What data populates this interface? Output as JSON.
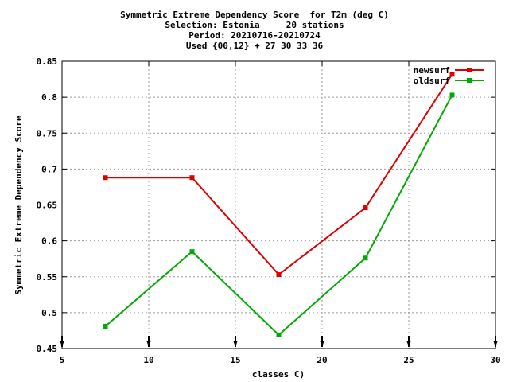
{
  "chart_data": {
    "type": "line",
    "title_lines": [
      "Symmetric Extreme Dependency Score  for T2m (deg C)",
      "Selection: Estonia     20 stations",
      "Period: 20210716-20210724",
      "Used {00,12} + 27 30 33 36"
    ],
    "xlabel": "classes C)",
    "ylabel": "Symmetric Extreme Dependency Score",
    "xlim": [
      5,
      30
    ],
    "ylim": [
      0.45,
      0.85
    ],
    "xticks": [
      5,
      10,
      15,
      20,
      25,
      30
    ],
    "yticks": [
      0.45,
      0.5,
      0.55,
      0.6,
      0.65,
      0.7,
      0.75,
      0.8,
      0.85
    ],
    "x": [
      7.5,
      12.5,
      17.5,
      22.5,
      27.5
    ],
    "series": [
      {
        "name": "newsurf",
        "color": "#dd0000",
        "values": [
          0.688,
          0.688,
          0.553,
          0.646,
          0.832
        ]
      },
      {
        "name": "oldsurf",
        "color": "#00aa00",
        "values": [
          0.481,
          0.585,
          0.469,
          0.576,
          0.803
        ]
      }
    ],
    "grid": true,
    "legend_position": "top-right"
  }
}
